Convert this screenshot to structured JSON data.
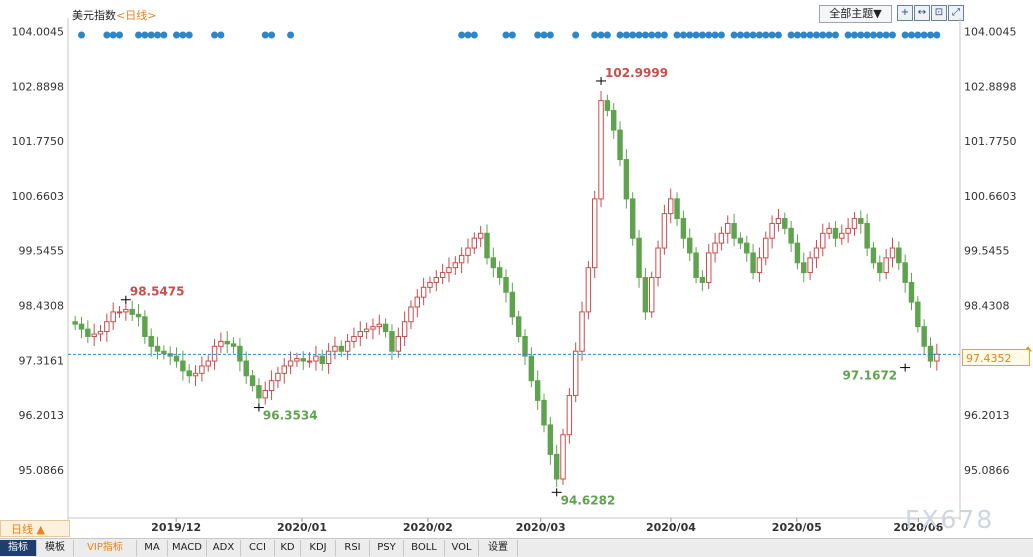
{
  "header": {
    "instrument": "美元指数",
    "mode_label": "<日线>",
    "theme_button": "全部主题▼",
    "tools": [
      "+",
      "↔",
      "⊡",
      "⤢"
    ]
  },
  "period_selector": {
    "label": "日线 ▲"
  },
  "current_price_tag": "97.4352",
  "watermark": "FX678",
  "bottom_tabs": [
    "指标",
    "模板",
    "VIP指标",
    "MA",
    "MACD",
    "ADX",
    "CCI",
    "KD",
    "KDJ",
    "RSI",
    "PSY",
    "BOLL",
    "VOL",
    "设置"
  ],
  "colors": {
    "up": "#cc4b4b",
    "down": "#5fa34f",
    "dot": "#2e86c9",
    "ref_line": "#2e86c9",
    "accent": "#e8821c"
  },
  "chart_data": {
    "type": "candlestick",
    "title": "美元指数",
    "y_ticks": [
      "104.0045",
      "102.8898",
      "101.7750",
      "100.6603",
      "99.5455",
      "98.4308",
      "97.3161",
      "96.2013",
      "95.0866"
    ],
    "ylim": [
      94.35,
      104.2
    ],
    "x_ticks": [
      "2019/12",
      "2020/01",
      "2020/02",
      "2020/03",
      "2020/04",
      "2020/05",
      "2020/06"
    ],
    "reference_line": 97.4352,
    "annotations": [
      {
        "label": "98.5475",
        "type": "high"
      },
      {
        "label": "96.3534",
        "type": "low"
      },
      {
        "label": "94.6282",
        "type": "low"
      },
      {
        "label": "102.9999",
        "type": "high"
      },
      {
        "label": "97.1672",
        "type": "low"
      }
    ],
    "approx_close": [
      98.05,
      97.95,
      97.8,
      97.85,
      97.9,
      98.1,
      98.3,
      98.3,
      98.35,
      98.25,
      98.2,
      97.8,
      97.6,
      97.5,
      97.45,
      97.4,
      97.3,
      97.1,
      97.0,
      97.05,
      97.2,
      97.3,
      97.6,
      97.7,
      97.65,
      97.6,
      97.3,
      97.0,
      96.8,
      96.55,
      96.7,
      96.9,
      97.05,
      97.2,
      97.3,
      97.35,
      97.3,
      97.3,
      97.4,
      97.25,
      97.5,
      97.6,
      97.5,
      97.7,
      97.8,
      97.9,
      97.95,
      98.0,
      98.05,
      97.9,
      97.5,
      97.8,
      98.1,
      98.4,
      98.6,
      98.8,
      98.9,
      99.0,
      99.1,
      99.2,
      99.3,
      99.45,
      99.6,
      99.8,
      99.9,
      99.4,
      99.2,
      99.0,
      98.7,
      98.2,
      97.8,
      97.4,
      96.9,
      96.5,
      96.0,
      95.4,
      94.9,
      95.8,
      96.6,
      97.5,
      98.3,
      99.2,
      100.6,
      102.6,
      102.4,
      102.0,
      101.4,
      100.6,
      99.8,
      99.0,
      98.3,
      99.0,
      99.6,
      100.3,
      100.6,
      100.2,
      99.8,
      99.5,
      99.0,
      98.9,
      99.5,
      99.7,
      99.9,
      100.1,
      99.8,
      99.7,
      99.5,
      99.1,
      99.4,
      99.8,
      100.1,
      100.2,
      100.0,
      99.7,
      99.3,
      99.1,
      99.4,
      99.6,
      99.9,
      100.0,
      99.8,
      99.9,
      100.0,
      100.2,
      100.1,
      99.6,
      99.3,
      99.1,
      99.4,
      99.6,
      99.3,
      98.9,
      98.5,
      98.0,
      97.6,
      97.3,
      97.44
    ]
  }
}
